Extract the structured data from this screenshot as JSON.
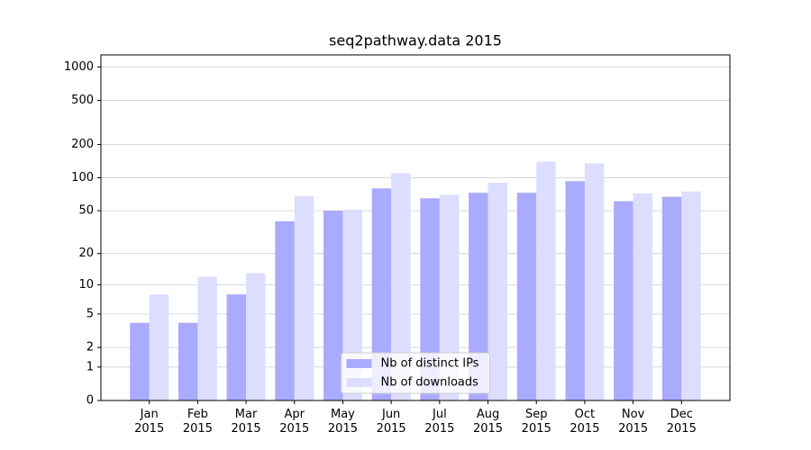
{
  "chart_data": {
    "type": "bar",
    "title": "seq2pathway.data 2015",
    "categories": [
      "Jan\n2015",
      "Feb\n2015",
      "Mar\n2015",
      "Apr\n2015",
      "May\n2015",
      "Jun\n2015",
      "Jul\n2015",
      "Aug\n2015",
      "Sep\n2015",
      "Oct\n2015",
      "Nov\n2015",
      "Dec\n2015"
    ],
    "series": [
      {
        "name": "Nb of distinct IPs",
        "color": "#aaaaff",
        "values": [
          4,
          4,
          8,
          40,
          50,
          80,
          65,
          73,
          73,
          93,
          61,
          67
        ]
      },
      {
        "name": "Nb of downloads",
        "color": "#ddddff",
        "values": [
          8,
          12,
          13,
          68,
          51,
          110,
          70,
          90,
          140,
          135,
          72,
          75
        ]
      }
    ],
    "yscale": "log1p",
    "ylim": [
      0,
      1285
    ],
    "yticks": [
      0,
      1,
      2,
      5,
      10,
      20,
      50,
      100,
      200,
      500,
      1000
    ],
    "grid": true,
    "legend": "lower center"
  }
}
